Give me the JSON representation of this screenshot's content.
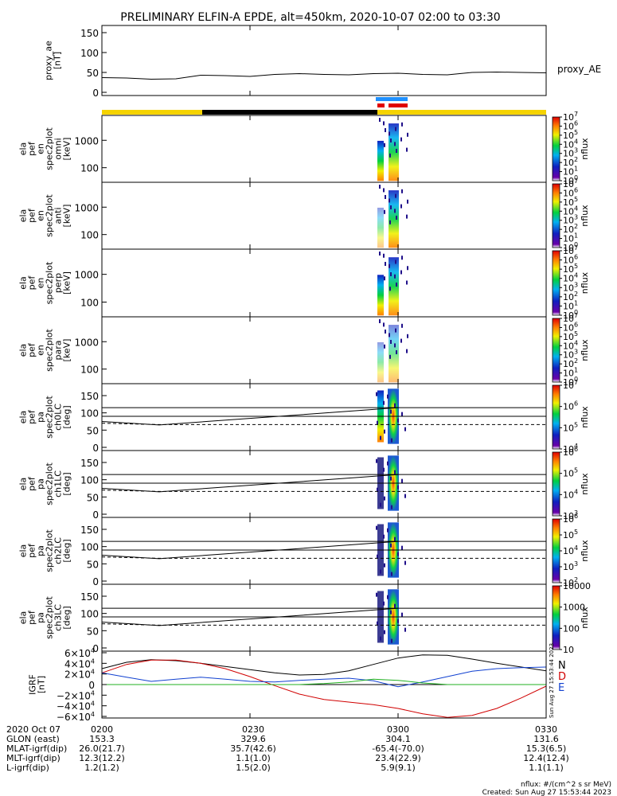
{
  "title": "PRELIMINARY ELFIN-A EPDE, alt=450km, 2020-10-07 02:00 to 03:30",
  "chart_data": [
    {
      "type": "line",
      "name": "proxy_ae",
      "ylabel_lines": [
        "proxy_ae",
        "[nT]"
      ],
      "legend": "proxy_AE",
      "yticks": [
        "0",
        "50",
        "100",
        "150"
      ],
      "ylim": [
        0,
        160
      ],
      "x_minutes": [
        0,
        5,
        10,
        15,
        20,
        25,
        30,
        35,
        40,
        45,
        50,
        55,
        60,
        65,
        70,
        75,
        80,
        85,
        90
      ],
      "values": [
        37,
        36,
        33,
        34,
        43,
        42,
        40,
        45,
        47,
        45,
        44,
        47,
        48,
        45,
        44,
        50,
        51,
        50,
        49
      ]
    },
    {
      "type": "heatmap",
      "name": "omni",
      "ylabel_lines": [
        "ela",
        "pef",
        "en",
        "spec2plot",
        "omni",
        "[keV]"
      ],
      "yticks": [
        "100",
        "1000"
      ],
      "cbar_ticks": [
        "10",
        "10",
        "10",
        "10",
        "10",
        "10",
        "10",
        "10"
      ],
      "cbar_exp": [
        "0",
        "1",
        "2",
        "3",
        "4",
        "5",
        "6",
        "7"
      ],
      "cbar_label": "nflux"
    },
    {
      "type": "heatmap",
      "name": "anti",
      "ylabel_lines": [
        "ela",
        "pef",
        "en",
        "spec2plot",
        "anti",
        "[keV]"
      ],
      "yticks": [
        "100",
        "1000"
      ],
      "cbar_ticks": [
        "10",
        "10",
        "10",
        "10",
        "10",
        "10",
        "10",
        "10"
      ],
      "cbar_exp": [
        "0",
        "1",
        "2",
        "3",
        "4",
        "5",
        "6",
        "7"
      ],
      "cbar_label": "nflux"
    },
    {
      "type": "heatmap",
      "name": "perp",
      "ylabel_lines": [
        "ela",
        "pef",
        "en",
        "spec2plot",
        "perp",
        "[keV]"
      ],
      "yticks": [
        "100",
        "1000"
      ],
      "cbar_ticks": [
        "10",
        "10",
        "10",
        "10",
        "10",
        "10",
        "10",
        "10"
      ],
      "cbar_exp": [
        "0",
        "1",
        "2",
        "3",
        "4",
        "5",
        "6",
        "7"
      ],
      "cbar_label": "nflux"
    },
    {
      "type": "heatmap",
      "name": "para",
      "ylabel_lines": [
        "ela",
        "pef",
        "en",
        "spec2plot",
        "para",
        "[keV]"
      ],
      "yticks": [
        "100",
        "1000"
      ],
      "cbar_ticks": [
        "10",
        "10",
        "10",
        "10",
        "10",
        "10",
        "10",
        "10"
      ],
      "cbar_exp": [
        "0",
        "1",
        "2",
        "3",
        "4",
        "5",
        "6",
        "7"
      ],
      "cbar_label": "nflux"
    },
    {
      "type": "heatmap",
      "name": "ch0LC",
      "ylabel_lines": [
        "ela",
        "pef",
        "pa",
        "spec2plot",
        "ch0LC",
        "[deg]"
      ],
      "yticks": [
        "0",
        "50",
        "100",
        "150"
      ],
      "cbar_ticks": [
        "10",
        "10",
        "10",
        "10"
      ],
      "cbar_exp": [
        "4",
        "5",
        "6",
        "7"
      ],
      "cbar_label": "nflux"
    },
    {
      "type": "heatmap",
      "name": "ch1LC",
      "ylabel_lines": [
        "ela",
        "pef",
        "pa",
        "spec2plot",
        "ch1LC",
        "[deg]"
      ],
      "yticks": [
        "0",
        "50",
        "100",
        "150"
      ],
      "cbar_ticks": [
        "10",
        "10",
        "10",
        "10"
      ],
      "cbar_exp": [
        "3",
        "4",
        "5",
        "6"
      ],
      "cbar_label": "nflux"
    },
    {
      "type": "heatmap",
      "name": "ch2LC",
      "ylabel_lines": [
        "ela",
        "pef",
        "pa",
        "spec2plot",
        "ch2LC",
        "[deg]"
      ],
      "yticks": [
        "0",
        "50",
        "100",
        "150"
      ],
      "cbar_ticks": [
        "10",
        "10",
        "10",
        "10",
        "10"
      ],
      "cbar_exp": [
        "2",
        "3",
        "4",
        "5",
        "6"
      ],
      "cbar_label": "nflux"
    },
    {
      "type": "heatmap",
      "name": "ch3LC",
      "ylabel_lines": [
        "ela",
        "pef",
        "pa",
        "spec2plot",
        "ch3LC",
        "[deg]"
      ],
      "yticks": [
        "0",
        "50",
        "100",
        "150"
      ],
      "cbar_ticks": [
        "10",
        "100",
        "1000",
        "10000"
      ],
      "cbar_exp": [
        "",
        "",
        "",
        ""
      ],
      "cbar_label": "nflux"
    },
    {
      "type": "line",
      "name": "igrf",
      "ylabel_lines": [
        "IGRF",
        "[nT]"
      ],
      "yticks": [
        "−6×10",
        "−4×10",
        "−2×10",
        "0",
        "2×10",
        "4×10",
        "6×10"
      ],
      "ytick_exp": "4",
      "ylim": [
        -60000,
        60000
      ],
      "legend": [
        "N",
        "D",
        "E"
      ],
      "colors": [
        "#000000",
        "#d00000",
        "#1040d0",
        "#20b020"
      ],
      "x_minutes": [
        0,
        5,
        10,
        15,
        20,
        25,
        30,
        35,
        40,
        45,
        50,
        55,
        60,
        65,
        70,
        75,
        80,
        85,
        90
      ],
      "series": [
        {
          "values": [
            30000,
            42000,
            47000,
            45000,
            40000,
            34000,
            28000,
            22000,
            18000,
            19000,
            26000,
            38000,
            50000,
            56000,
            55000,
            48000,
            40000,
            33000,
            26000
          ]
        },
        {
          "values": [
            22000,
            38000,
            46000,
            46000,
            40000,
            30000,
            15000,
            -2000,
            -18000,
            -28000,
            -33000,
            -38000,
            -45000,
            -55000,
            -62000,
            -58000,
            -45000,
            -25000,
            -3000
          ]
        },
        {
          "values": [
            22000,
            14000,
            6000,
            10000,
            14000,
            10000,
            6000,
            5000,
            8000,
            10000,
            12000,
            7000,
            -4000,
            5000,
            15000,
            25000,
            30000,
            32000,
            33000
          ]
        },
        {
          "values": [
            0,
            0,
            0,
            0,
            0,
            0,
            0,
            0,
            0,
            2000,
            5000,
            10000,
            8000,
            3000,
            0,
            0,
            0,
            0,
            0
          ]
        }
      ]
    }
  ],
  "xaxis": {
    "tick_labels": [
      "0200",
      "0230",
      "0300",
      "0330"
    ],
    "tick_minutes": [
      0,
      30,
      60,
      90
    ],
    "xlim": [
      0,
      90
    ]
  },
  "footer": {
    "rows": [
      {
        "label": "2020 Oct 07",
        "values": [
          "0200",
          "0230",
          "0300",
          "0330"
        ]
      },
      {
        "label": "GLON (east)",
        "values": [
          "153.3",
          "329.6",
          "304.1",
          "131.6"
        ]
      },
      {
        "label": "MLAT-igrf(dip)",
        "values": [
          "26.0(21.7)",
          "35.7(42.6)",
          "-65.4(-70.0)",
          "15.3(6.5)"
        ]
      },
      {
        "label": "MLT-igrf(dip)",
        "values": [
          "12.3(12.2)",
          "1.1(1.0)",
          "23.4(22.9)",
          "12.4(12.4)"
        ]
      },
      {
        "label": "L-igrf(dip)",
        "values": [
          "1.2(1.2)",
          "1.5(2.0)",
          "5.9(9.1)",
          "1.1(1.1)"
        ]
      }
    ],
    "units": "nflux: #/(cm^2 s sr MeV)",
    "created": "Created: Sun Aug 27 15:53:44 2023",
    "side_stamp": "Sun Aug 27 15:53:44 2023"
  }
}
